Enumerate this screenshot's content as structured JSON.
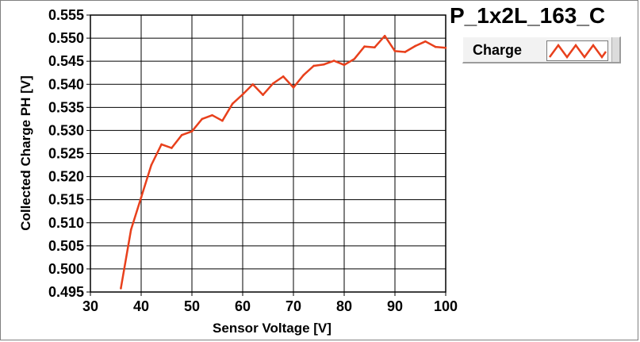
{
  "chart_data": {
    "type": "line",
    "title": "P_1x2L_163_C",
    "xlabel": "Sensor Voltage [V]",
    "ylabel": "Collected Charge PH [V]",
    "xlim": [
      30,
      100
    ],
    "ylim": [
      0.495,
      0.555
    ],
    "x_ticks": [
      30,
      40,
      50,
      60,
      70,
      80,
      90,
      100
    ],
    "y_ticks": [
      "0.495",
      "0.500",
      "0.505",
      "0.510",
      "0.515",
      "0.520",
      "0.525",
      "0.530",
      "0.535",
      "0.540",
      "0.545",
      "0.550",
      "0.555"
    ],
    "grid": true,
    "legend_position": "top-right",
    "series": [
      {
        "name": "Charge",
        "color": "#e8401c",
        "x": [
          36,
          38,
          40,
          42,
          44,
          46,
          48,
          50,
          52,
          54,
          56,
          58,
          60,
          62,
          64,
          66,
          68,
          70,
          72,
          74,
          76,
          78,
          80,
          82,
          84,
          86,
          88,
          90,
          92,
          94,
          96,
          98,
          100
        ],
        "y": [
          0.4958,
          0.5085,
          0.5155,
          0.5225,
          0.527,
          0.5262,
          0.529,
          0.5298,
          0.5325,
          0.5333,
          0.5321,
          0.5358,
          0.5378,
          0.54,
          0.5377,
          0.5402,
          0.5417,
          0.5393,
          0.542,
          0.544,
          0.5443,
          0.5451,
          0.5442,
          0.5455,
          0.5482,
          0.548,
          0.5505,
          0.5472,
          0.547,
          0.5483,
          0.5493,
          0.5481,
          0.5479
        ]
      }
    ]
  }
}
